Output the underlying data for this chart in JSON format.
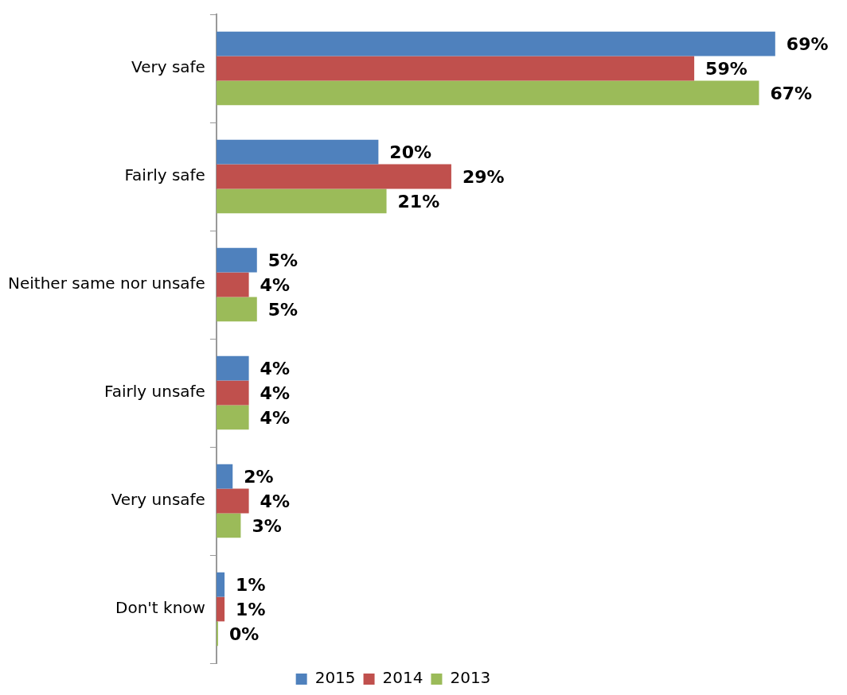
{
  "chart_data": {
    "type": "bar",
    "orientation": "horizontal",
    "categories": [
      "Very safe",
      "Fairly safe",
      "Neither same nor unsafe",
      "Fairly unsafe",
      "Very unsafe",
      "Don't know"
    ],
    "series": [
      {
        "name": "2015",
        "color": "#4f81bd",
        "values": [
          69,
          20,
          5,
          4,
          2,
          1
        ],
        "value_labels": [
          "69%",
          "20%",
          "5%",
          "4%",
          "2%",
          "1%"
        ]
      },
      {
        "name": "2014",
        "color": "#c0504d",
        "values": [
          59,
          29,
          4,
          4,
          4,
          1
        ],
        "value_labels": [
          "59%",
          "29%",
          "4%",
          "4%",
          "4%",
          "1%"
        ]
      },
      {
        "name": "2013",
        "color": "#9bbb59",
        "values": [
          67,
          21,
          5,
          4,
          3,
          0
        ],
        "value_labels": [
          "67%",
          "21%",
          "5%",
          "4%",
          "3%",
          "0%"
        ]
      }
    ],
    "legend": "bottom"
  }
}
